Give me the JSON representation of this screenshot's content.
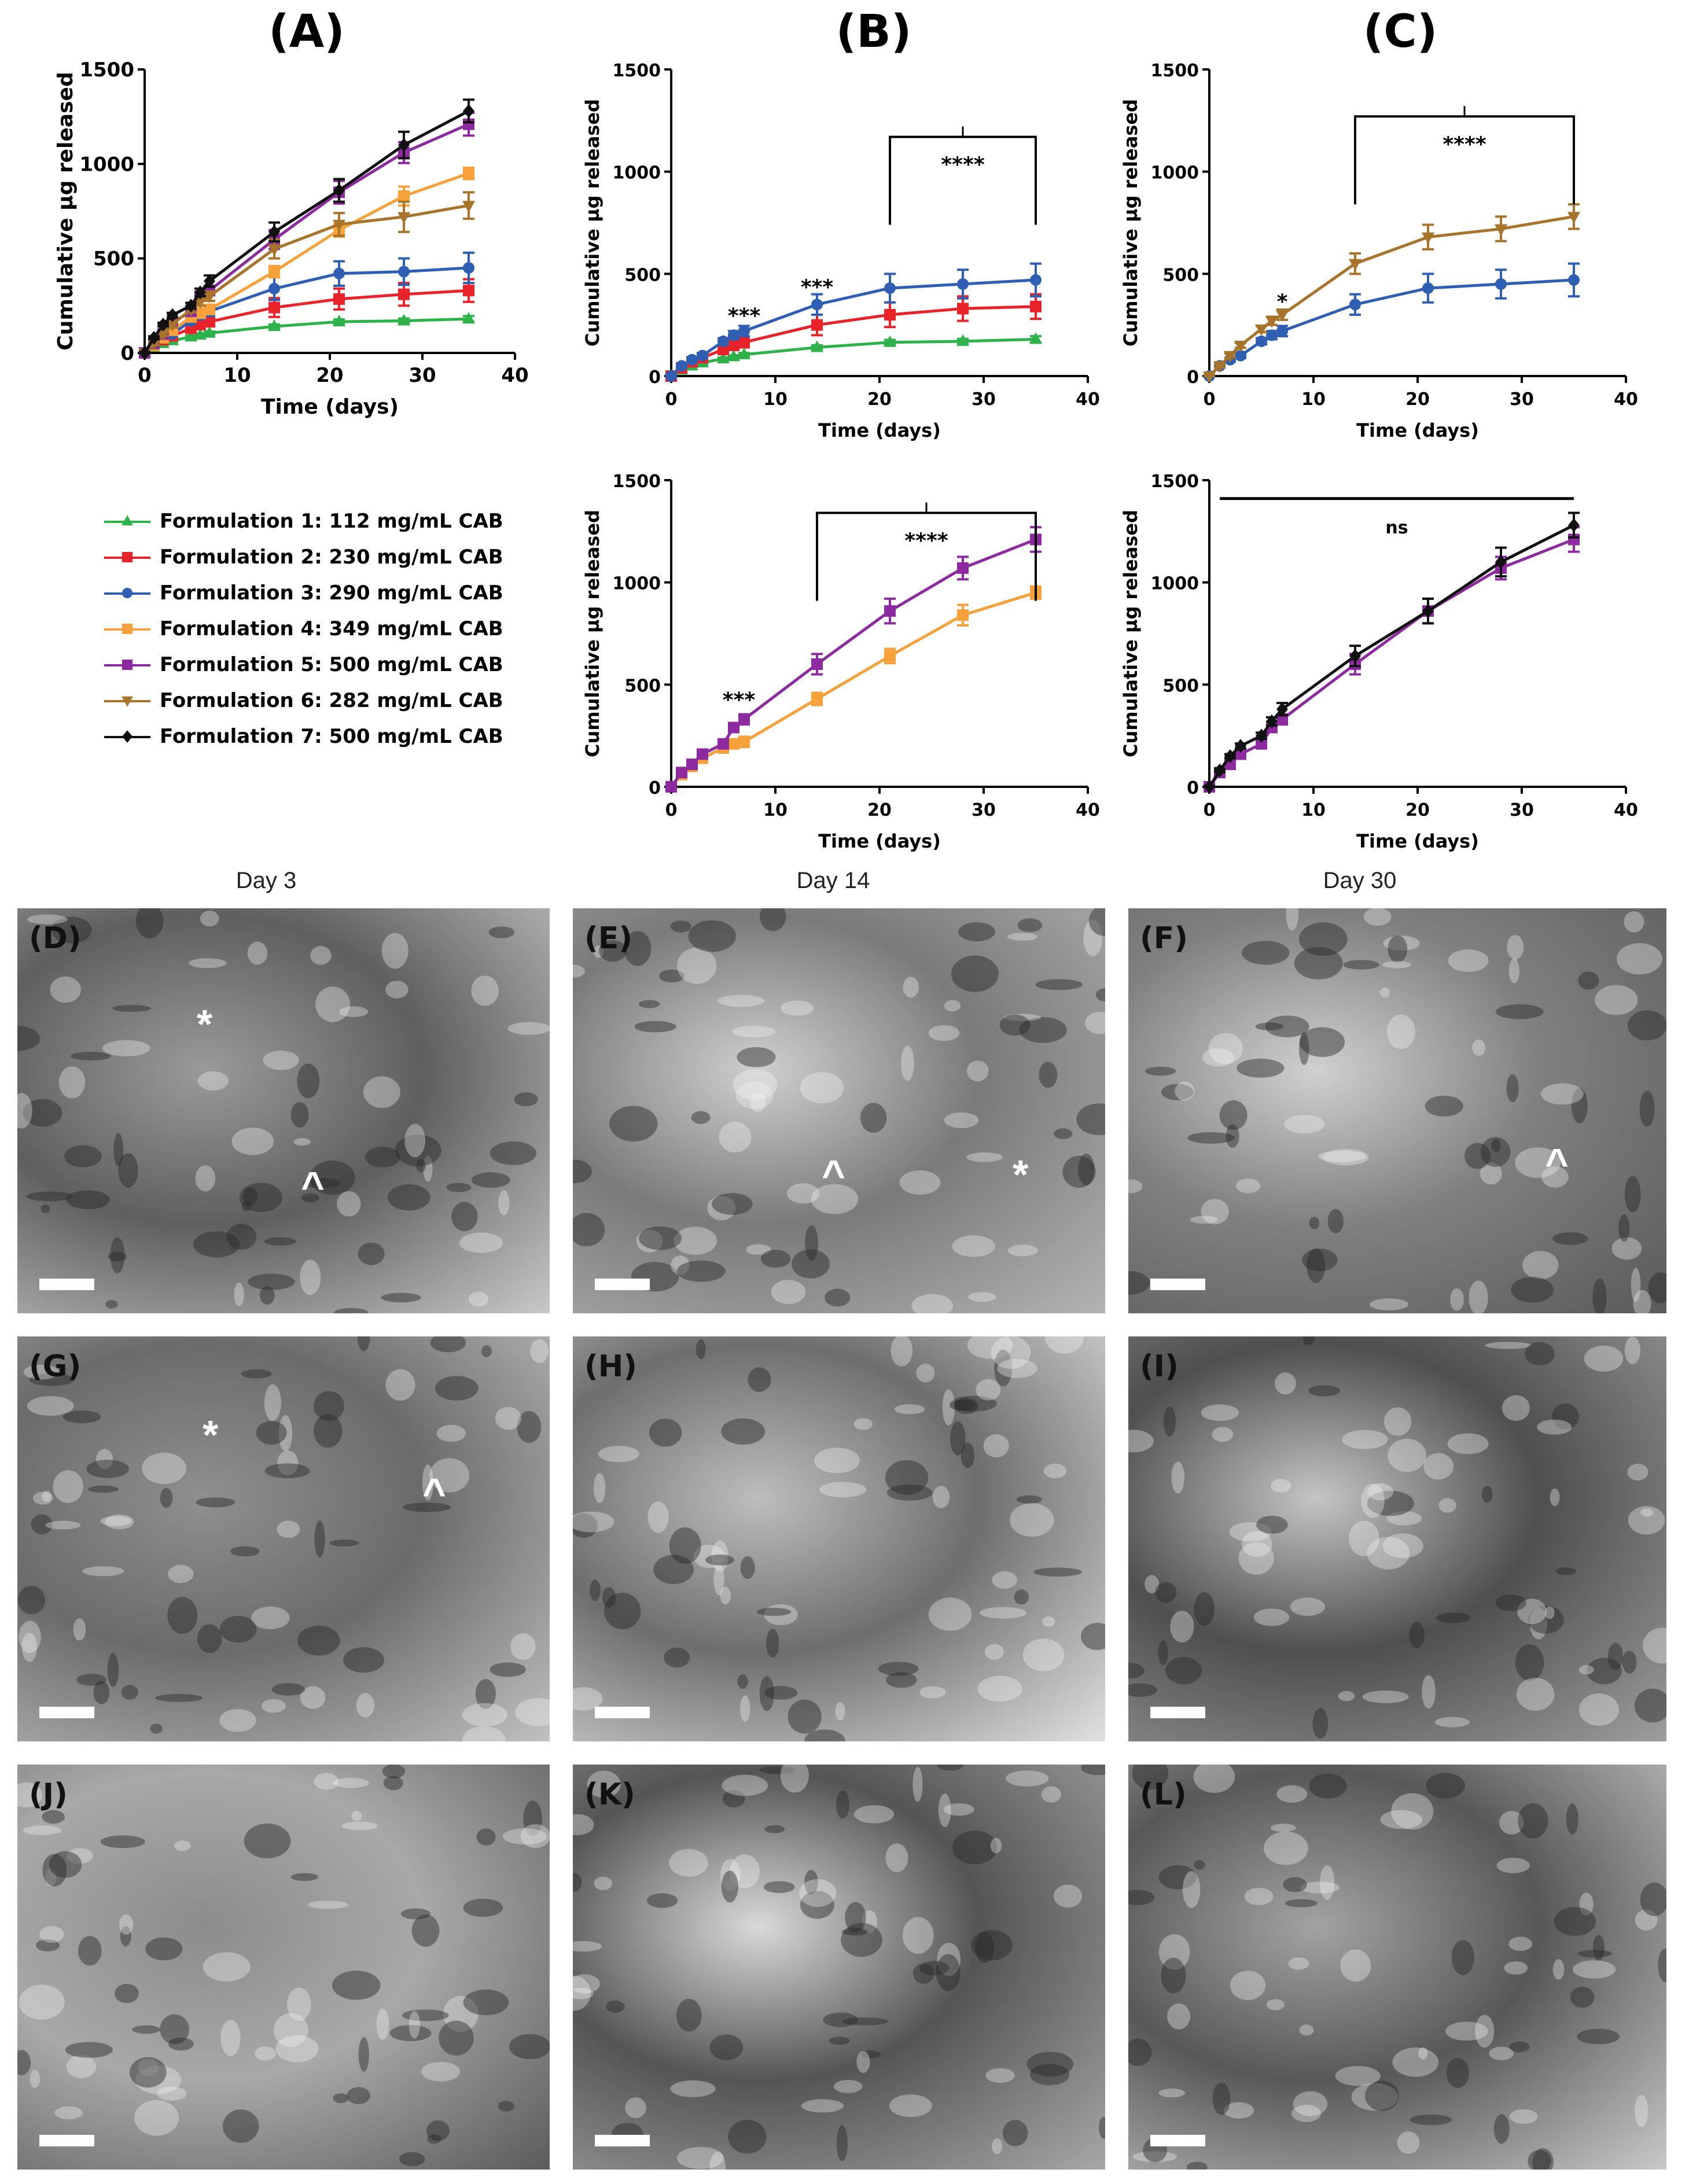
{
  "panel_titles": {
    "A": "(A)",
    "B": "(B)",
    "C": "(C)"
  },
  "legend": [
    {
      "label": "Formulation 1: 112 mg/mL CAB",
      "color": "#2db34a",
      "marker": "triangle-up"
    },
    {
      "label": "Formulation 2: 230 mg/mL CAB",
      "color": "#e8232a",
      "marker": "square"
    },
    {
      "label": "Formulation 3: 290 mg/mL CAB",
      "color": "#2f5fb3",
      "marker": "circle"
    },
    {
      "label": "Formulation 4: 349 mg/mL CAB",
      "color": "#f7a13a",
      "marker": "square"
    },
    {
      "label": "Formulation 5: 500 mg/mL CAB",
      "color": "#8e2aa0",
      "marker": "square"
    },
    {
      "label": "Formulation 6: 282 mg/mL CAB",
      "color": "#a8732a",
      "marker": "triangle-down"
    },
    {
      "label": "Formulation 7: 500 mg/mL CAB",
      "color": "#111111",
      "marker": "diamond"
    }
  ],
  "chart_data": [
    {
      "id": "A",
      "type": "line",
      "xlabel": "Time (days)",
      "ylabel": "Cumulative µg released",
      "xlim": [
        0,
        40
      ],
      "ylim": [
        0,
        1500
      ],
      "xticks": [
        "0",
        "10",
        "20",
        "30",
        "40"
      ],
      "yticks": [
        "0",
        "500",
        "1000",
        "1500"
      ],
      "series": [
        {
          "name": "Formulation 1: 112 mg/mL CAB",
          "x": [
            0,
            1,
            2,
            3,
            5,
            6,
            7,
            14,
            21,
            28,
            35
          ],
          "y": [
            0,
            30,
            50,
            65,
            85,
            95,
            105,
            140,
            165,
            170,
            180
          ],
          "err": [
            5,
            5,
            5,
            5,
            6,
            6,
            8,
            10,
            12,
            12,
            15
          ]
        },
        {
          "name": "Formulation 2: 230 mg/mL CAB",
          "x": [
            0,
            1,
            2,
            3,
            5,
            6,
            7,
            14,
            21,
            28,
            35
          ],
          "y": [
            0,
            40,
            70,
            90,
            130,
            150,
            165,
            240,
            285,
            310,
            330
          ],
          "err": [
            5,
            8,
            10,
            12,
            15,
            20,
            25,
            50,
            55,
            60,
            60
          ]
        },
        {
          "name": "Formulation 3: 290 mg/mL CAB",
          "x": [
            0,
            1,
            2,
            3,
            5,
            6,
            7,
            14,
            21,
            28,
            35
          ],
          "y": [
            0,
            50,
            80,
            100,
            170,
            200,
            220,
            340,
            420,
            430,
            450
          ],
          "err": [
            5,
            8,
            10,
            12,
            15,
            20,
            25,
            60,
            65,
            70,
            80
          ]
        },
        {
          "name": "Formulation 4: 349 mg/mL CAB",
          "x": [
            0,
            1,
            2,
            3,
            5,
            6,
            7,
            14,
            21,
            28,
            35
          ],
          "y": [
            0,
            40,
            80,
            120,
            190,
            210,
            230,
            430,
            650,
            830,
            950
          ],
          "err": [
            5,
            8,
            10,
            12,
            15,
            20,
            25,
            30,
            35,
            50,
            30
          ]
        },
        {
          "name": "Formulation 5: 500 mg/mL CAB",
          "x": [
            0,
            1,
            2,
            3,
            5,
            6,
            7,
            14,
            21,
            28,
            35
          ],
          "y": [
            0,
            50,
            100,
            160,
            220,
            300,
            330,
            600,
            850,
            1060,
            1210
          ],
          "err": [
            5,
            8,
            10,
            12,
            15,
            20,
            25,
            50,
            60,
            55,
            60
          ]
        },
        {
          "name": "Formulation 6: 282 mg/mL CAB",
          "x": [
            0,
            1,
            2,
            3,
            5,
            6,
            7,
            14,
            21,
            28,
            35
          ],
          "y": [
            0,
            50,
            100,
            150,
            230,
            270,
            300,
            550,
            680,
            720,
            780
          ],
          "err": [
            5,
            8,
            10,
            12,
            15,
            20,
            25,
            50,
            60,
            80,
            70
          ]
        },
        {
          "name": "Formulation 7: 500 mg/mL CAB",
          "x": [
            0,
            1,
            2,
            3,
            5,
            6,
            7,
            14,
            21,
            28,
            35
          ],
          "y": [
            0,
            80,
            150,
            200,
            250,
            320,
            380,
            640,
            860,
            1100,
            1280
          ],
          "err": [
            5,
            8,
            10,
            12,
            15,
            20,
            30,
            50,
            60,
            70,
            60
          ]
        }
      ],
      "annotations": []
    },
    {
      "id": "B-top",
      "type": "line",
      "xlabel": "Time (days)",
      "ylabel": "Cumulative µg released",
      "xlim": [
        0,
        40
      ],
      "ylim": [
        0,
        1500
      ],
      "xticks": [
        "0",
        "10",
        "20",
        "30",
        "40"
      ],
      "yticks": [
        "0",
        "500",
        "1000",
        "1500"
      ],
      "series": [
        {
          "name": "Formulation 1: 112 mg/mL CAB",
          "x": [
            0,
            1,
            2,
            3,
            5,
            6,
            7,
            14,
            21,
            28,
            35
          ],
          "y": [
            0,
            30,
            50,
            65,
            85,
            95,
            105,
            140,
            165,
            170,
            180
          ],
          "err": [
            5,
            5,
            5,
            5,
            6,
            6,
            8,
            10,
            12,
            12,
            15
          ]
        },
        {
          "name": "Formulation 2: 230 mg/mL CAB",
          "x": [
            0,
            1,
            2,
            3,
            5,
            6,
            7,
            14,
            21,
            28,
            35
          ],
          "y": [
            0,
            40,
            70,
            90,
            130,
            150,
            165,
            250,
            300,
            330,
            340
          ],
          "err": [
            5,
            8,
            10,
            12,
            15,
            20,
            25,
            50,
            60,
            60,
            60
          ]
        },
        {
          "name": "Formulation 3: 290 mg/mL CAB",
          "x": [
            0,
            1,
            2,
            3,
            5,
            6,
            7,
            14,
            21,
            28,
            35
          ],
          "y": [
            0,
            50,
            80,
            100,
            170,
            200,
            220,
            350,
            430,
            450,
            470
          ],
          "err": [
            5,
            8,
            10,
            12,
            15,
            20,
            25,
            50,
            70,
            70,
            80
          ]
        }
      ],
      "annotations": [
        {
          "text": "***",
          "x": 7,
          "y": 260
        },
        {
          "text": "***",
          "x": 14,
          "y": 400
        },
        {
          "text": "****",
          "bracket": [
            21,
            35
          ],
          "y": 1170
        }
      ]
    },
    {
      "id": "C-top",
      "type": "line",
      "xlabel": "Time (days)",
      "ylabel": "Cumulative µg released",
      "xlim": [
        0,
        40
      ],
      "ylim": [
        0,
        1500
      ],
      "xticks": [
        "0",
        "10",
        "20",
        "30",
        "40"
      ],
      "yticks": [
        "0",
        "500",
        "1000",
        "1500"
      ],
      "series": [
        {
          "name": "Formulation 3: 290 mg/mL CAB",
          "x": [
            0,
            1,
            2,
            3,
            5,
            6,
            7,
            14,
            21,
            28,
            35
          ],
          "y": [
            0,
            50,
            80,
            100,
            170,
            200,
            220,
            350,
            430,
            450,
            470
          ],
          "err": [
            5,
            8,
            10,
            12,
            15,
            20,
            25,
            50,
            70,
            70,
            80
          ]
        },
        {
          "name": "Formulation 6: 282 mg/mL CAB",
          "x": [
            0,
            1,
            2,
            3,
            5,
            6,
            7,
            14,
            21,
            28,
            35
          ],
          "y": [
            0,
            50,
            100,
            150,
            230,
            270,
            300,
            550,
            680,
            720,
            780
          ],
          "err": [
            5,
            8,
            10,
            12,
            15,
            20,
            25,
            50,
            60,
            60,
            60
          ]
        }
      ],
      "annotations": [
        {
          "text": "*",
          "x": 7,
          "y": 330
        },
        {
          "text": "****",
          "bracket": [
            14,
            35
          ],
          "y": 1270
        }
      ]
    },
    {
      "id": "B-bottom",
      "type": "line",
      "xlabel": "Time (days)",
      "ylabel": "Cumulative µg released",
      "xlim": [
        0,
        40
      ],
      "ylim": [
        0,
        1500
      ],
      "xticks": [
        "0",
        "10",
        "20",
        "30",
        "40"
      ],
      "yticks": [
        "0",
        "500",
        "1000",
        "1500"
      ],
      "series": [
        {
          "name": "Formulation 4: 349 mg/mL CAB",
          "x": [
            0,
            1,
            2,
            3,
            5,
            6,
            7,
            14,
            21,
            28,
            35
          ],
          "y": [
            0,
            60,
            100,
            140,
            190,
            210,
            220,
            430,
            640,
            840,
            950
          ],
          "err": [
            5,
            8,
            10,
            12,
            15,
            20,
            25,
            30,
            35,
            50,
            30
          ]
        },
        {
          "name": "Formulation 5: 500 mg/mL CAB",
          "x": [
            0,
            1,
            2,
            3,
            5,
            6,
            7,
            14,
            21,
            28,
            35
          ],
          "y": [
            0,
            70,
            110,
            160,
            210,
            290,
            330,
            600,
            860,
            1070,
            1210
          ],
          "err": [
            5,
            8,
            10,
            12,
            15,
            20,
            25,
            50,
            60,
            55,
            60
          ]
        }
      ],
      "annotations": [
        {
          "text": "***",
          "x": 6.5,
          "y": 390
        },
        {
          "text": "****",
          "bracket": [
            14,
            35
          ],
          "y": 1340
        }
      ]
    },
    {
      "id": "C-bottom",
      "type": "line",
      "xlabel": "Time (days)",
      "ylabel": "Cumulative µg released",
      "xlim": [
        0,
        40
      ],
      "ylim": [
        0,
        1500
      ],
      "xticks": [
        "0",
        "10",
        "20",
        "30",
        "40"
      ],
      "yticks": [
        "0",
        "500",
        "1000",
        "1500"
      ],
      "series": [
        {
          "name": "Formulation 5: 500 mg/mL CAB",
          "x": [
            0,
            1,
            2,
            3,
            5,
            6,
            7,
            14,
            21,
            28,
            35
          ],
          "y": [
            0,
            70,
            110,
            160,
            210,
            290,
            330,
            600,
            860,
            1070,
            1210
          ],
          "err": [
            5,
            8,
            10,
            12,
            15,
            20,
            25,
            50,
            60,
            55,
            60
          ]
        },
        {
          "name": "Formulation 7: 500 mg/mL CAB",
          "x": [
            0,
            1,
            2,
            3,
            5,
            6,
            7,
            14,
            21,
            28,
            35
          ],
          "y": [
            0,
            80,
            150,
            200,
            250,
            320,
            380,
            640,
            860,
            1100,
            1280
          ],
          "err": [
            5,
            8,
            10,
            12,
            15,
            20,
            30,
            50,
            60,
            70,
            60
          ]
        }
      ],
      "annotations": [
        {
          "text": "ns",
          "bracket": [
            1,
            35
          ],
          "y": 1410,
          "flat": true
        }
      ]
    }
  ],
  "sem": {
    "day_labels": [
      "Day 3",
      "Day 14",
      "Day 30"
    ],
    "panels": [
      {
        "tag": "(D)",
        "marks": [
          "*",
          "^"
        ]
      },
      {
        "tag": "(E)",
        "marks": [
          "^",
          "*"
        ]
      },
      {
        "tag": "(F)",
        "marks": [
          "^"
        ]
      },
      {
        "tag": "(G)",
        "marks": [
          "*",
          "^"
        ]
      },
      {
        "tag": "(H)",
        "marks": []
      },
      {
        "tag": "(I)",
        "marks": []
      },
      {
        "tag": "(J)",
        "marks": []
      },
      {
        "tag": "(K)",
        "marks": []
      },
      {
        "tag": "(L)",
        "marks": []
      }
    ]
  }
}
